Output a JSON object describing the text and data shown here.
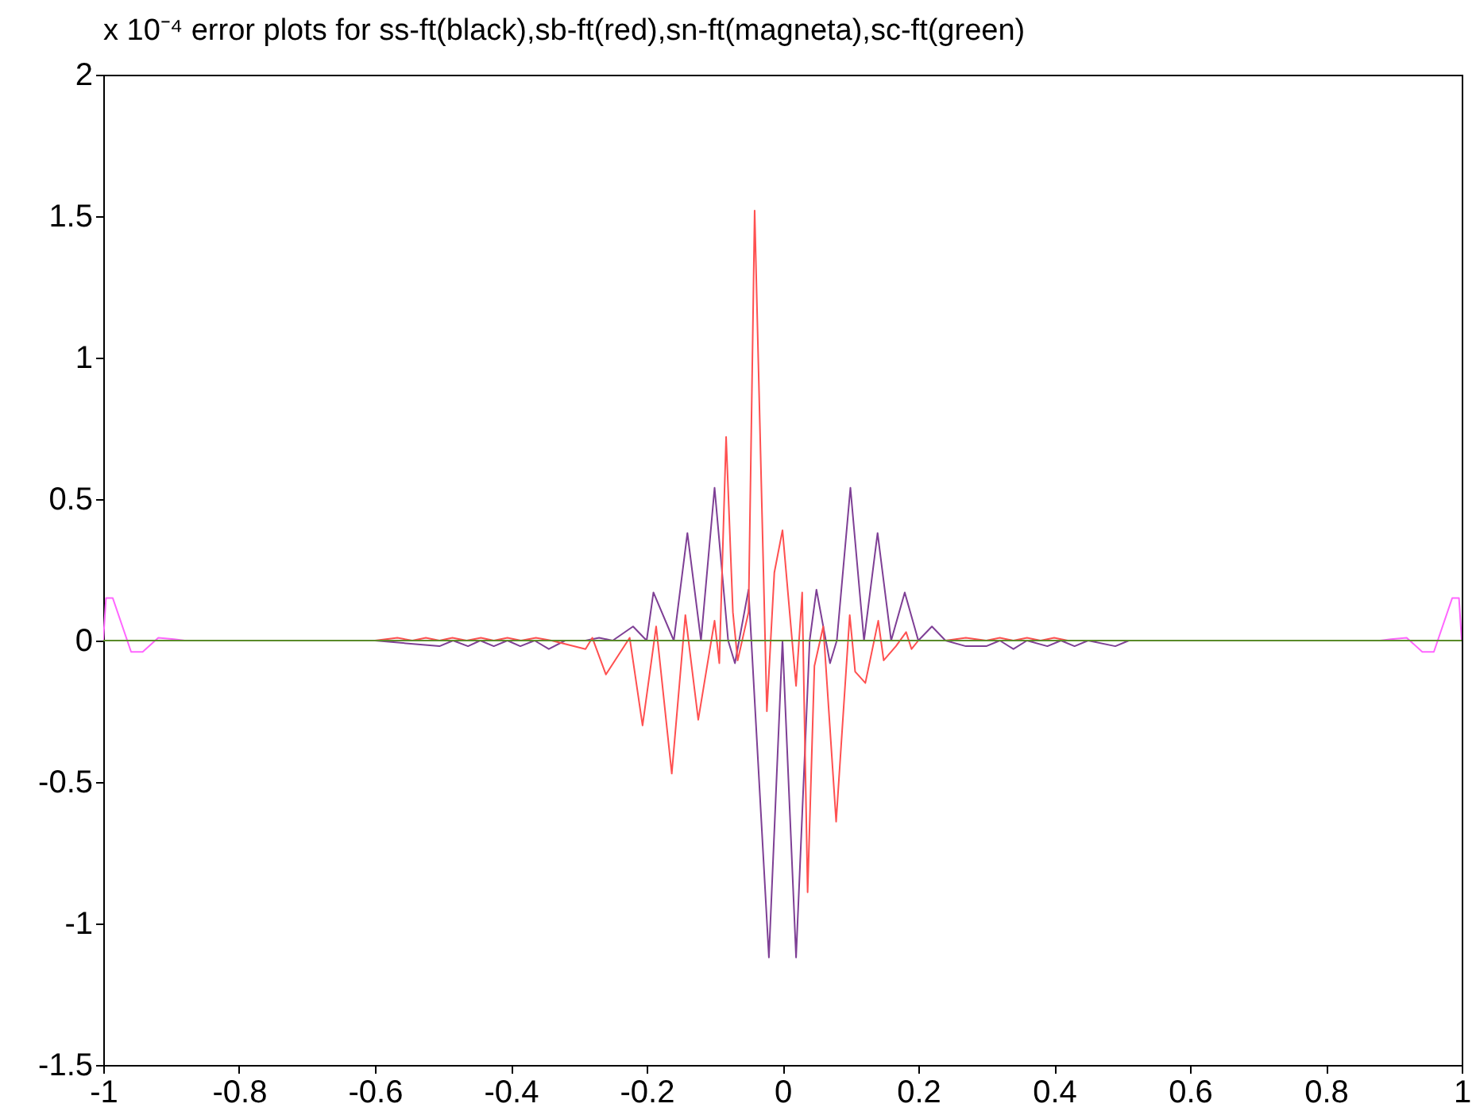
{
  "chart_data": {
    "type": "line",
    "title": "x 10⁻⁴ error plots for ss-ft(black),sb-ft(red),sn-ft(magneta),sc-ft(green)",
    "xlim": [
      -1,
      1
    ],
    "xticks": [
      -1,
      -0.8,
      -0.6,
      -0.4,
      -0.2,
      0,
      0.2,
      0.4,
      0.6,
      0.8,
      1
    ],
    "ylim": [
      -1.5,
      2
    ],
    "yticks": [
      -1.5,
      -1,
      -0.5,
      0,
      0.5,
      1,
      1.5,
      2
    ],
    "grid": false,
    "legend": false,
    "series": [
      {
        "color": "#7e3f95",
        "x": [
          -1,
          -0.6,
          -0.505,
          -0.485,
          -0.463,
          -0.445,
          -0.425,
          -0.405,
          -0.386,
          -0.365,
          -0.344,
          -0.32,
          -0.29,
          -0.27,
          -0.25,
          -0.22,
          -0.2,
          -0.19,
          -0.16,
          -0.14,
          -0.12,
          -0.1,
          -0.08,
          -0.07,
          -0.05,
          -0.02,
          0,
          0.02,
          0.04,
          0.05,
          0.07,
          0.08,
          0.1,
          0.12,
          0.14,
          0.16,
          0.18,
          0.2,
          0.22,
          0.24,
          0.27,
          0.3,
          0.32,
          0.34,
          0.36,
          0.39,
          0.41,
          0.43,
          0.45,
          0.49,
          0.51,
          1
        ],
        "values": [
          0,
          0,
          -0.02,
          0,
          -0.02,
          0,
          -0.02,
          0,
          -0.02,
          0,
          -0.03,
          0,
          0,
          0.01,
          0,
          0.05,
          0,
          0.17,
          0,
          0.38,
          0,
          0.54,
          0,
          -0.08,
          0.18,
          -1.12,
          0,
          -1.12,
          0,
          0.18,
          -0.08,
          0,
          0.54,
          0,
          0.38,
          0,
          0.17,
          0,
          0.05,
          0,
          -0.02,
          -0.02,
          0,
          -0.03,
          0,
          -0.02,
          0,
          -0.02,
          0,
          -0.02,
          0,
          0
        ]
      },
      {
        "color": "#ff5050",
        "x": [
          -1,
          -0.6,
          -0.567,
          -0.545,
          -0.525,
          -0.505,
          -0.486,
          -0.465,
          -0.444,
          -0.425,
          -0.405,
          -0.385,
          -0.363,
          -0.34,
          -0.29,
          -0.28,
          -0.26,
          -0.225,
          -0.206,
          -0.186,
          -0.163,
          -0.143,
          -0.124,
          -0.1,
          -0.093,
          -0.083,
          -0.073,
          -0.066,
          -0.05,
          -0.041,
          -0.023,
          -0.012,
          0,
          0.02,
          0.029,
          0.037,
          0.047,
          0.06,
          0.079,
          0.099,
          0.107,
          0.122,
          0.141,
          0.149,
          0.167,
          0.182,
          0.19,
          0.2,
          0.24,
          0.27,
          0.3,
          0.32,
          0.34,
          0.36,
          0.38,
          0.4,
          0.42,
          0.44,
          1
        ],
        "values": [
          0,
          0,
          0.01,
          0,
          0.01,
          0,
          0.01,
          0,
          0.01,
          0,
          0.01,
          0,
          0.01,
          0,
          -0.03,
          0.01,
          -0.12,
          0.01,
          -0.3,
          0.05,
          -0.47,
          0.09,
          -0.28,
          0.07,
          -0.08,
          0.72,
          0.1,
          -0.07,
          0.1,
          1.52,
          -0.25,
          0.24,
          0.39,
          -0.16,
          0.17,
          -0.89,
          -0.09,
          0.05,
          -0.64,
          0.09,
          -0.11,
          -0.15,
          0.07,
          -0.07,
          -0.02,
          0.03,
          -0.03,
          0,
          0,
          0.01,
          0,
          0.01,
          0,
          0.01,
          0,
          0.01,
          0,
          0,
          0
        ]
      },
      {
        "color": "#ff66ff",
        "x": [
          -1,
          -0.996,
          -0.986,
          -0.959,
          -0.942,
          -0.919,
          -0.896,
          -0.88,
          null,
          0.88,
          0.896,
          0.919,
          0.942,
          0.959,
          0.986,
          0.996,
          1
        ],
        "values": [
          0,
          0.15,
          0.15,
          -0.04,
          -0.04,
          0.01,
          0.005,
          0,
          null,
          0,
          0.005,
          0.01,
          -0.04,
          -0.04,
          0.15,
          0.15,
          0
        ]
      },
      {
        "color": "#5a8a2a",
        "x": [
          -1,
          1
        ],
        "values": [
          0,
          0
        ]
      }
    ]
  }
}
